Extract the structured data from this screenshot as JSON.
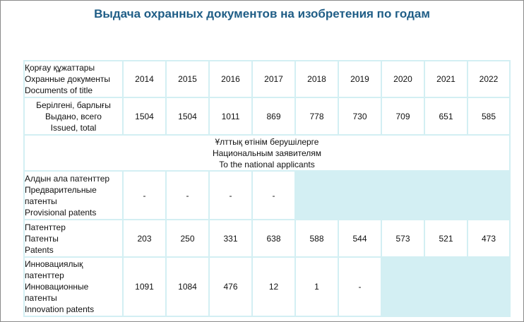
{
  "title": "Выдача охранных документов на изобретения по годам",
  "header": {
    "label_lines": [
      "Қорғау құжаттары",
      "Охранные документы",
      "Documents of title"
    ],
    "years": [
      "2014",
      "2015",
      "2016",
      "2017",
      "2018",
      "2019",
      "2020",
      "2021",
      "2022"
    ]
  },
  "issued_total": {
    "label_lines": [
      "Берілгені, барлығы",
      "Выдано, всего",
      "Issued, total"
    ],
    "values": [
      "1504",
      "1504",
      "1011",
      "869",
      "778",
      "730",
      "709",
      "651",
      "585"
    ]
  },
  "national_section": {
    "label_lines": [
      "Ұлттық өтінім берушілерге",
      "Национальным заявителям",
      "To the national applicants"
    ]
  },
  "provisional_patents": {
    "label_lines": [
      "Алдын ала патенттер",
      "Предварительные",
      "патенты",
      "Provisional patents"
    ],
    "values": [
      "-",
      "-",
      "-",
      "-",
      "",
      "",
      "",
      "",
      ""
    ]
  },
  "patents": {
    "label_lines": [
      "Патенттер",
      "Патенты",
      "Patents"
    ],
    "values": [
      "203",
      "250",
      "331",
      "638",
      "588",
      "544",
      "573",
      "521",
      "473"
    ]
  },
  "innovation_patents": {
    "label_lines": [
      "Инновациялық",
      "патенттер",
      "Инновационные",
      "патенты",
      "Innovation patents"
    ],
    "values": [
      "1091",
      "1084",
      "476",
      "12",
      "1",
      "-",
      "",
      "",
      ""
    ]
  },
  "colors": {
    "title": "#1f5d86",
    "grid_teal": "#d3eff3"
  }
}
